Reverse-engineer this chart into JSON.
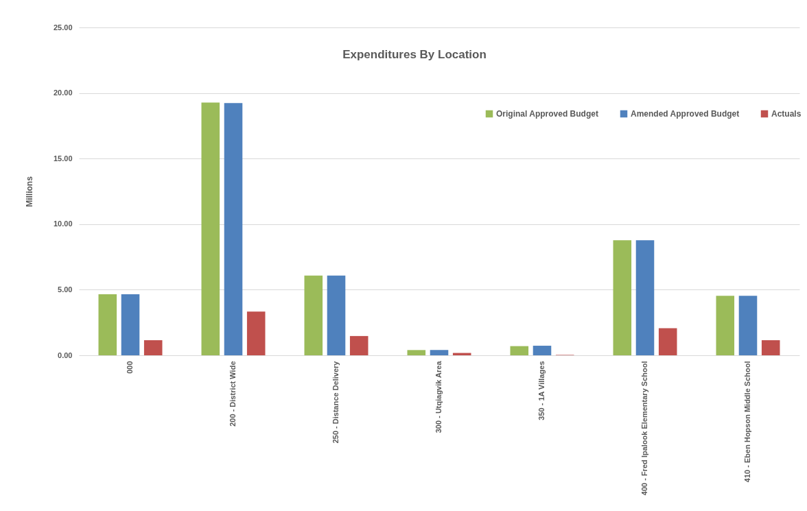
{
  "chart_data": {
    "type": "bar",
    "title": "Expenditures By Location",
    "ylabel": "Millions",
    "categories": [
      "000",
      "200 - District Wide",
      "250 - Distance Delivery",
      "300 - Utqiagvik Area",
      "350 - 1A Villages",
      "400 - Fred Ipalook Elementary School",
      "410 - Eben Hopson Middle School"
    ],
    "series": [
      {
        "name": "Original Approved Budget",
        "color": "#9bbb59",
        "values": [
          4.65,
          19.27,
          6.08,
          0.4,
          0.7,
          8.77,
          4.54
        ]
      },
      {
        "name": "Amended Approved Budget",
        "color": "#4f81bd",
        "values": [
          4.65,
          19.23,
          6.08,
          0.4,
          0.73,
          8.77,
          4.54
        ]
      },
      {
        "name": "Actuals",
        "color": "#c0504d",
        "values": [
          1.15,
          3.34,
          1.47,
          0.18,
          0.03,
          2.06,
          1.15
        ]
      }
    ],
    "ylim": [
      0,
      25
    ],
    "yticks": [
      {
        "value": 0,
        "label": "0.00"
      },
      {
        "value": 5,
        "label": "5.00"
      },
      {
        "value": 10,
        "label": "10.00"
      },
      {
        "value": 15,
        "label": "15.00"
      },
      {
        "value": 20,
        "label": "20.00"
      },
      {
        "value": 25,
        "label": "25.00"
      }
    ],
    "grid": "y",
    "legend": "top right"
  }
}
